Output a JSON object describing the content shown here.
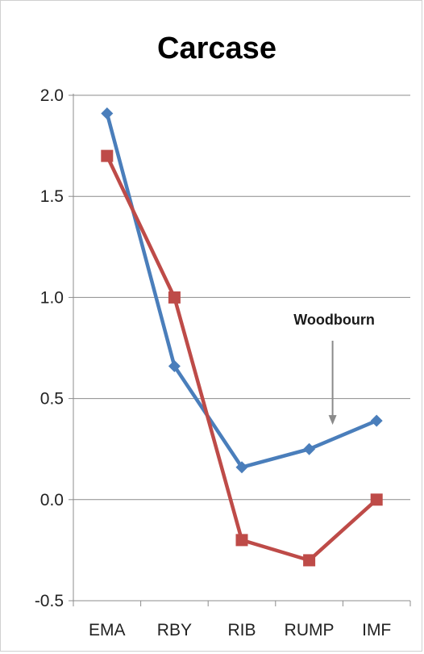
{
  "chart_data": {
    "type": "line",
    "title": "Carcase",
    "categories": [
      "EMA",
      "RBY",
      "RIB",
      "RUMP",
      "IMF"
    ],
    "xlabel": "",
    "ylabel": "",
    "ylim": [
      -0.5,
      2.0
    ],
    "yticks": [
      2.0,
      1.5,
      1.0,
      0.5,
      0.0,
      -0.5
    ],
    "ytick_labels": [
      "2.0",
      "1.5",
      "1.0",
      "0.5",
      "0.0",
      "-0.5"
    ],
    "grid": true,
    "legend": "none",
    "series": [
      {
        "values": [
          1.91,
          0.66,
          0.16,
          0.25,
          0.39
        ],
        "color": "#4a7ebb",
        "marker": "diamond"
      },
      {
        "values": [
          1.7,
          1.0,
          -0.2,
          -0.3,
          0.0
        ],
        "color": "#be4b48",
        "marker": "square"
      }
    ],
    "annotations": [
      {
        "text": "Woodbourn",
        "points_to": {
          "category": "RUMP",
          "y": 0.37
        }
      }
    ]
  }
}
